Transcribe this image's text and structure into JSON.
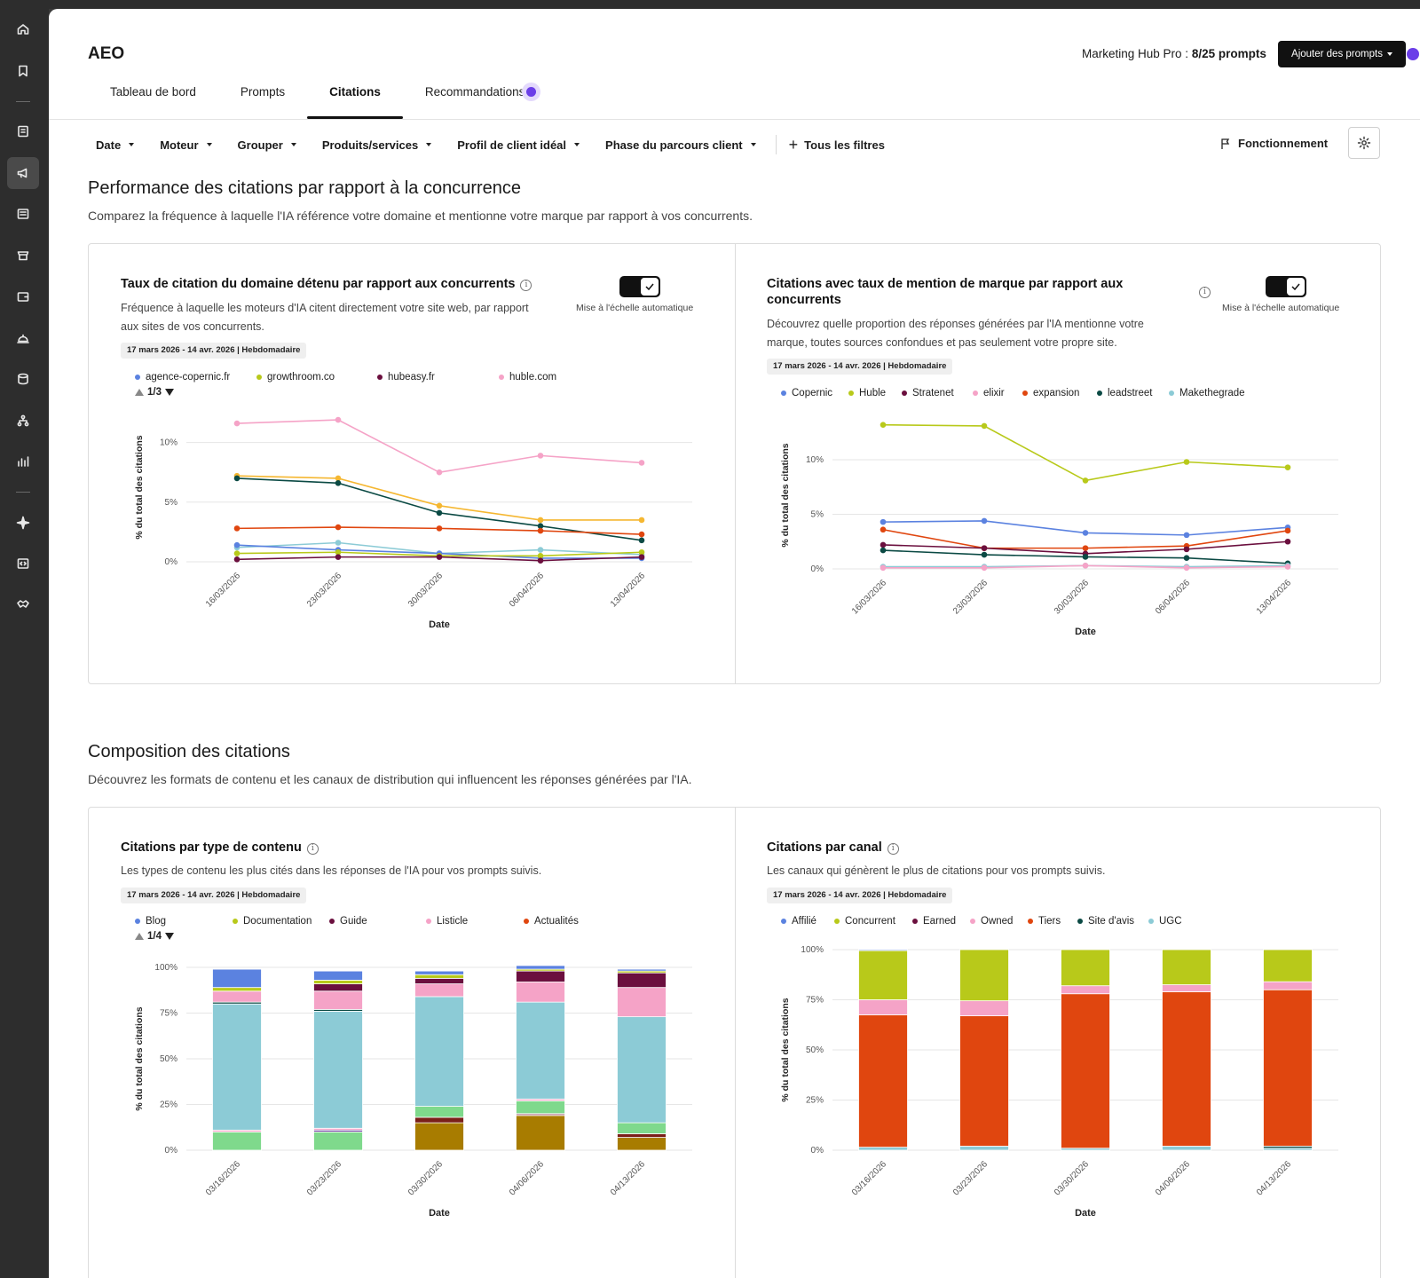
{
  "app": {
    "title": "AEO",
    "hub_label": "Marketing Hub Pro : ",
    "hub_count": "8/25 prompts",
    "add_button": "Ajouter des prompts"
  },
  "tabs": [
    {
      "label": "Tableau de bord"
    },
    {
      "label": "Prompts"
    },
    {
      "label": "Citations",
      "active": true
    },
    {
      "label": "Recommandations"
    }
  ],
  "filters": {
    "items": [
      "Date",
      "Moteur",
      "Grouper",
      "Produits/services",
      "Profil de client idéal",
      "Phase du parcours client"
    ],
    "all_filters": "Tous les filtres",
    "how_it_works": "Fonctionnement"
  },
  "sidebar": {
    "icons": [
      "home-icon",
      "bookmark-icon",
      "contacts-icon",
      "megaphone-icon",
      "content-icon",
      "commerce-icon",
      "wallet-icon",
      "service-icon",
      "database-icon",
      "hierarchy-icon",
      "reports-icon",
      "sparkle-icon",
      "dev-icon",
      "handshake-icon"
    ]
  },
  "section1": {
    "title": "Performance des citations par rapport à la concurrence",
    "subtitle": "Comparez la fréquence à laquelle l'IA référence votre domaine et mentionne votre marque par rapport à vos concurrents."
  },
  "section2": {
    "title": "Composition des citations",
    "subtitle": "Découvrez les formats de contenu et les canaux de distribution qui influencent les réponses générées par l'IA."
  },
  "panes": {
    "domain_rate": {
      "title": "Taux de citation du domaine détenu par rapport aux concurrents",
      "desc_line1": "Fréquence à laquelle les moteurs d'IA citent directement votre site web, par rapport",
      "desc_line2": "aux sites de vos concurrents.",
      "date_chip": "17 mars 2026 - 14 avr. 2026 | Hebdomadaire",
      "toggle_label": "Mise à l'échelle automatique",
      "pager": "1/3"
    },
    "brand_mention": {
      "title_line1": "Citations avec taux de mention de marque par rapport aux",
      "title_line2": "concurrents",
      "desc_line1": "Découvrez quelle proportion des réponses générées par l'IA mentionne votre",
      "desc_line2": "marque, toutes sources confondues et pas seulement votre propre site.",
      "date_chip": "17 mars 2026 - 14 avr. 2026 | Hebdomadaire",
      "toggle_label": "Mise à l'échelle automatique"
    },
    "content_type": {
      "title": "Citations par type de contenu",
      "desc": "Les types de contenu les plus cités dans les réponses de l'IA pour vos prompts suivis.",
      "date_chip": "17 mars 2026 - 14 avr. 2026 | Hebdomadaire",
      "pager": "1/4"
    },
    "channel": {
      "title": "Citations par canal",
      "desc": "Les canaux qui génèrent le plus de citations pour vos prompts suivis.",
      "date_chip": "17 mars 2026 - 14 avr. 2026 | Hebdomadaire"
    }
  },
  "chart_data": [
    {
      "id": "domain_rate",
      "type": "line",
      "xlabel": "Date",
      "ylabel": "% du total des citations",
      "ylim": [
        0,
        12.5
      ],
      "yticks": [
        0,
        5,
        10
      ],
      "ytick_labels": [
        "0%",
        "5%",
        "10%"
      ],
      "x": [
        "16/03/2026",
        "23/03/2026",
        "30/03/2026",
        "06/04/2026",
        "13/04/2026"
      ],
      "legend": [
        {
          "name": "agence-copernic.fr",
          "color": "#5b82e0"
        },
        {
          "name": "growthroom.co",
          "color": "#b8c91a"
        },
        {
          "name": "hubeasy.fr",
          "color": "#6b0f3e"
        },
        {
          "name": "huble.com",
          "color": "#f5a3c7"
        }
      ],
      "series": [
        {
          "color": "#f5a3c7",
          "values": [
            11.6,
            11.9,
            7.5,
            8.9,
            8.3
          ]
        },
        {
          "color": "#f5b731",
          "values": [
            7.2,
            7.0,
            4.7,
            3.5,
            3.5
          ]
        },
        {
          "color": "#0b4a44",
          "values": [
            7.0,
            6.6,
            4.1,
            3.0,
            1.8
          ]
        },
        {
          "color": "#e0460f",
          "values": [
            2.8,
            2.9,
            2.8,
            2.6,
            2.3
          ]
        },
        {
          "color": "#8ccbd6",
          "values": [
            1.2,
            1.6,
            0.7,
            1.0,
            0.6
          ]
        },
        {
          "color": "#5b82e0",
          "values": [
            1.4,
            1.0,
            0.7,
            0.3,
            0.3
          ]
        },
        {
          "color": "#b8c91a",
          "values": [
            0.7,
            0.8,
            0.5,
            0.5,
            0.8
          ]
        },
        {
          "color": "#6b0f3e",
          "values": [
            0.2,
            0.4,
            0.4,
            0.1,
            0.4
          ]
        }
      ]
    },
    {
      "id": "brand_mention",
      "type": "line",
      "xlabel": "Date",
      "ylabel": "% du total des citations",
      "ylim": [
        0,
        13.5
      ],
      "yticks": [
        0,
        5,
        10
      ],
      "ytick_labels": [
        "0%",
        "5%",
        "10%"
      ],
      "x": [
        "16/03/2026",
        "23/03/2026",
        "30/03/2026",
        "06/04/2026",
        "13/04/2026"
      ],
      "legend": [
        {
          "name": "Copernic",
          "color": "#5b82e0"
        },
        {
          "name": "Huble",
          "color": "#b8c91a"
        },
        {
          "name": "Stratenet",
          "color": "#6b0f3e"
        },
        {
          "name": "elixir",
          "color": "#f5a3c7"
        },
        {
          "name": "expansion",
          "color": "#e0460f"
        },
        {
          "name": "leadstreet",
          "color": "#0b4a44"
        },
        {
          "name": "Makethegrade",
          "color": "#8ccbd6"
        }
      ],
      "series": [
        {
          "color": "#b8c91a",
          "values": [
            13.2,
            13.1,
            8.1,
            9.8,
            9.3
          ]
        },
        {
          "color": "#5b82e0",
          "values": [
            4.3,
            4.4,
            3.3,
            3.1,
            3.8
          ]
        },
        {
          "color": "#e0460f",
          "values": [
            3.6,
            1.9,
            1.9,
            2.1,
            3.5
          ]
        },
        {
          "color": "#6b0f3e",
          "values": [
            2.2,
            1.9,
            1.4,
            1.8,
            2.5
          ]
        },
        {
          "color": "#0b4a44",
          "values": [
            1.7,
            1.3,
            1.1,
            1.0,
            0.5
          ]
        },
        {
          "color": "#8ccbd6",
          "values": [
            0.2,
            0.2,
            0.3,
            0.2,
            0.3
          ]
        },
        {
          "color": "#f5a3c7",
          "values": [
            0.1,
            0.1,
            0.3,
            0.1,
            0.2
          ]
        }
      ]
    },
    {
      "id": "content_type",
      "type": "bar",
      "stacked": true,
      "xlabel": "Date",
      "ylabel": "% du total des citations",
      "ylim": [
        0,
        100
      ],
      "yticks": [
        0,
        25,
        50,
        75,
        100
      ],
      "ytick_labels": [
        "0%",
        "25%",
        "50%",
        "75%",
        "100%"
      ],
      "categories": [
        "03/16/2026",
        "03/23/2026",
        "03/30/2026",
        "04/06/2026",
        "04/13/2026"
      ],
      "legend": [
        {
          "name": "Blog",
          "color": "#5b82e0"
        },
        {
          "name": "Documentation",
          "color": "#b8c91a"
        },
        {
          "name": "Guide",
          "color": "#6b0f3e"
        },
        {
          "name": "Listicle",
          "color": "#f5a3c7"
        },
        {
          "name": "Actualités",
          "color": "#e0460f"
        }
      ],
      "series": [
        {
          "color": "#a87c00",
          "values": [
            0,
            0,
            15,
            19,
            7
          ]
        },
        {
          "color": "#b87b8f",
          "values": [
            0,
            0,
            0,
            1,
            0
          ]
        },
        {
          "color": "#7a1f18",
          "values": [
            0,
            0,
            3,
            0,
            2
          ]
        },
        {
          "color": "#7fd98c",
          "values": [
            10,
            10,
            6,
            7,
            6
          ]
        },
        {
          "color": "#6b3a9a",
          "values": [
            0,
            1,
            0,
            0,
            0
          ]
        },
        {
          "color": "#f5a3c7",
          "values": [
            1,
            1,
            0,
            1,
            0
          ]
        },
        {
          "color": "#8ccbd6",
          "values": [
            69,
            64,
            60,
            53,
            58
          ]
        },
        {
          "color": "#0b4a44",
          "values": [
            1,
            1,
            0,
            0,
            0
          ]
        },
        {
          "color": "#f5a3c7",
          "values": [
            6,
            10,
            7,
            11,
            16
          ]
        },
        {
          "color": "#6b0f3e",
          "values": [
            0,
            4,
            3,
            6,
            8
          ]
        },
        {
          "color": "#b8c91a",
          "values": [
            2,
            2,
            2,
            1,
            1
          ]
        },
        {
          "color": "#5b82e0",
          "values": [
            10,
            5,
            2,
            2,
            1
          ]
        }
      ]
    },
    {
      "id": "channel",
      "type": "bar",
      "stacked": true,
      "xlabel": "Date",
      "ylabel": "% du total des citations",
      "ylim": [
        0,
        100
      ],
      "yticks": [
        0,
        25,
        50,
        75,
        100
      ],
      "ytick_labels": [
        "0%",
        "25%",
        "50%",
        "75%",
        "100%"
      ],
      "categories": [
        "03/16/2026",
        "03/23/2026",
        "03/30/2026",
        "04/06/2026",
        "04/13/2026"
      ],
      "legend": [
        {
          "name": "Affilié",
          "color": "#5b82e0"
        },
        {
          "name": "Concurrent",
          "color": "#b8c91a"
        },
        {
          "name": "Earned",
          "color": "#6b0f3e"
        },
        {
          "name": "Owned",
          "color": "#f5a3c7"
        },
        {
          "name": "Tiers",
          "color": "#e0460f"
        },
        {
          "name": "Site d'avis",
          "color": "#0b4a44"
        },
        {
          "name": "UGC",
          "color": "#8ccbd6"
        }
      ],
      "series": [
        {
          "color": "#8ccbd6",
          "values": [
            1.5,
            2,
            1,
            2,
            1
          ]
        },
        {
          "color": "#0b4a44",
          "values": [
            0,
            0,
            0,
            0,
            1
          ]
        },
        {
          "color": "#e0460f",
          "values": [
            66,
            65,
            77,
            77,
            78
          ]
        },
        {
          "color": "#f5a3c7",
          "values": [
            7.5,
            7.5,
            4,
            3.5,
            4
          ]
        },
        {
          "color": "#b8c91a",
          "values": [
            24.5,
            25.5,
            18,
            17.5,
            16
          ]
        },
        {
          "color": "#5b82e0",
          "values": [
            0.5,
            0,
            0,
            0,
            0
          ]
        }
      ]
    }
  ]
}
